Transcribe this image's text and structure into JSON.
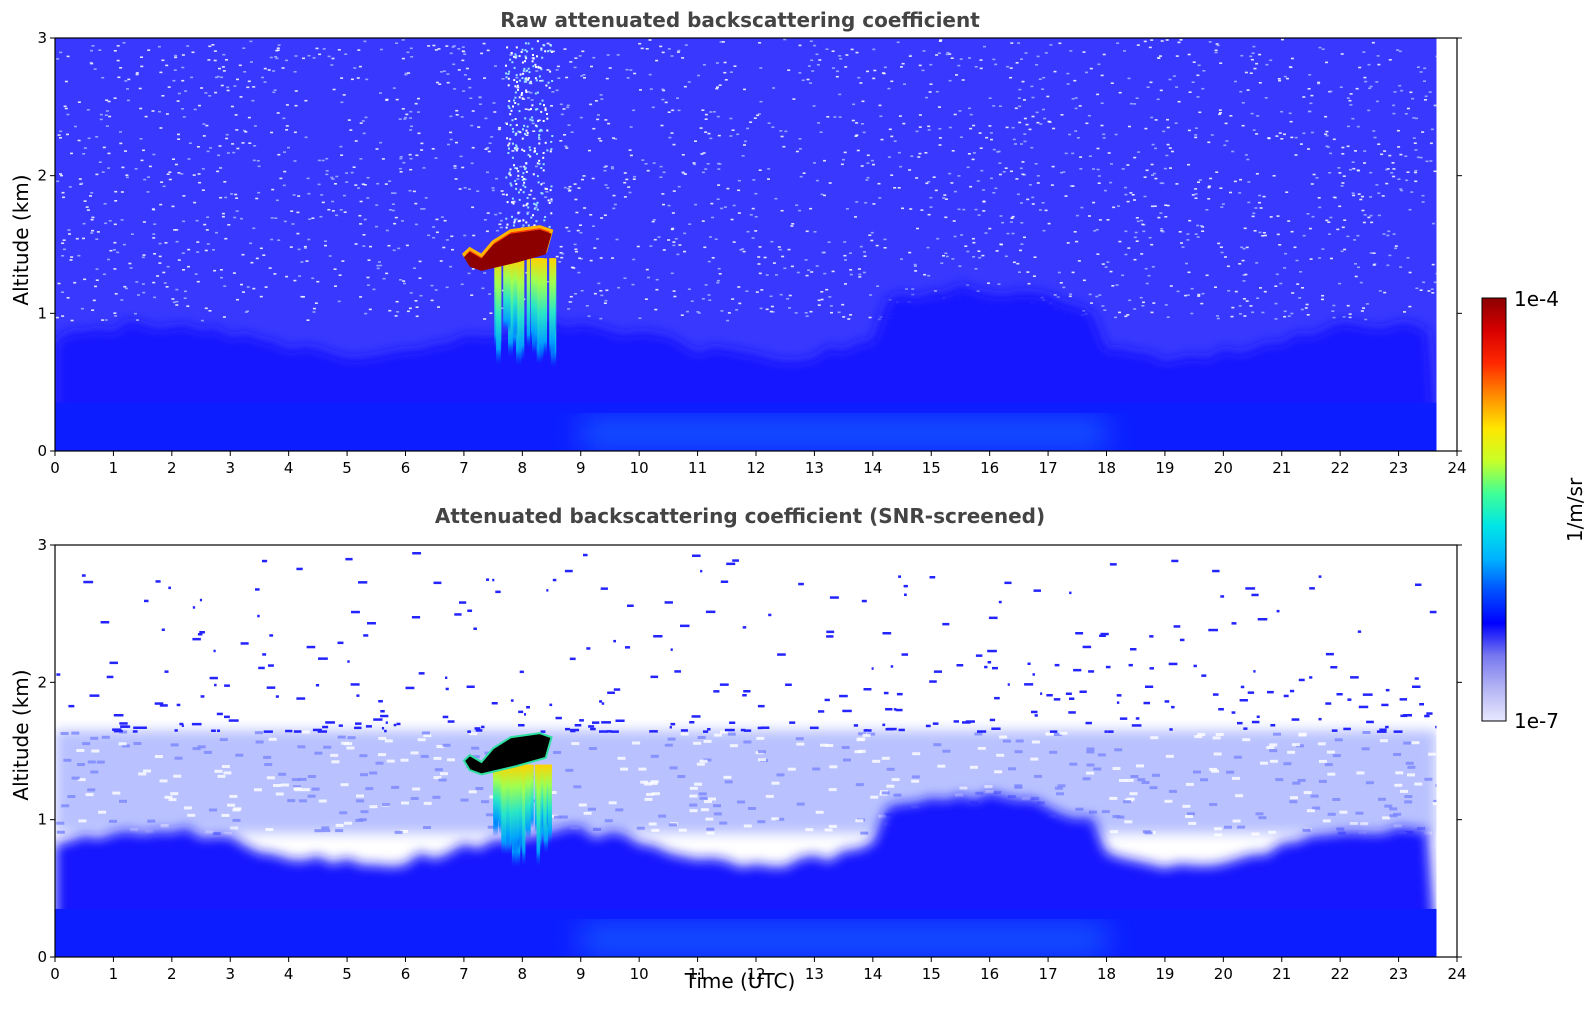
{
  "chart_data": [
    {
      "type": "heatmap",
      "title": "Raw attenuated backscattering coefficient",
      "xlabel": "",
      "ylabel": "Altitude (km)",
      "xlim": [
        0,
        24
      ],
      "ylim": [
        0,
        3
      ],
      "x_ticks": [
        "0",
        "1",
        "2",
        "3",
        "4",
        "5",
        "6",
        "7",
        "8",
        "9",
        "10",
        "11",
        "12",
        "13",
        "14",
        "15",
        "16",
        "17",
        "18",
        "19",
        "20",
        "21",
        "22",
        "23",
        "24"
      ],
      "y_ticks": [
        "0",
        "1",
        "2",
        "3"
      ],
      "data_end_time": 23.65,
      "features": [
        {
          "label": "boundary layer",
          "time": [
            0,
            23.65
          ],
          "altitude_top_km": 0.8
        },
        {
          "label": "residual layer",
          "time": [
            0,
            23.65
          ],
          "altitude_top_km": 1.6
        },
        {
          "label": "cloud top",
          "time": [
            7.0,
            8.5
          ],
          "altitude_km": [
            1.35,
            1.6
          ],
          "value": "1e-4"
        },
        {
          "label": "precipitation fall streaks",
          "time": [
            7.5,
            8.5
          ],
          "altitude_km": [
            0.6,
            1.4
          ]
        }
      ]
    },
    {
      "type": "heatmap",
      "title": "Attenuated backscattering coefficient (SNR-screened)",
      "xlabel": "Time (UTC)",
      "ylabel": "Altitude (km)",
      "xlim": [
        0,
        24
      ],
      "ylim": [
        0,
        3
      ],
      "x_ticks": [
        "0",
        "1",
        "2",
        "3",
        "4",
        "5",
        "6",
        "7",
        "8",
        "9",
        "10",
        "11",
        "12",
        "13",
        "14",
        "15",
        "16",
        "17",
        "18",
        "19",
        "20",
        "21",
        "22",
        "23",
        "24"
      ],
      "y_ticks": [
        "0",
        "1",
        "2",
        "3"
      ],
      "data_end_time": 23.65,
      "features": [
        {
          "label": "boundary layer",
          "time": [
            0,
            23.65
          ],
          "altitude_top_km": 0.8
        },
        {
          "label": "residual layer",
          "time": [
            0,
            23.65
          ],
          "altitude_top_km": 1.65
        },
        {
          "label": "cloud top (saturated)",
          "time": [
            7.0,
            8.5
          ],
          "altitude_km": [
            1.35,
            1.6
          ]
        },
        {
          "label": "precipitation fall streaks",
          "time": [
            7.5,
            8.5
          ],
          "altitude_km": [
            0.65,
            1.4
          ]
        }
      ]
    }
  ],
  "colorbar": {
    "label": "1/m/sr",
    "max_label": "1e-4",
    "min_label": "1e-7",
    "scale": "log",
    "colormap": [
      "#e8e8ff",
      "#b4b4f4",
      "#7878f0",
      "#0000ff",
      "#0050ff",
      "#00b4ff",
      "#00e6e6",
      "#40ff96",
      "#c8ff28",
      "#ffe600",
      "#ff8c00",
      "#ff2800",
      "#d70000",
      "#8c0000"
    ]
  }
}
